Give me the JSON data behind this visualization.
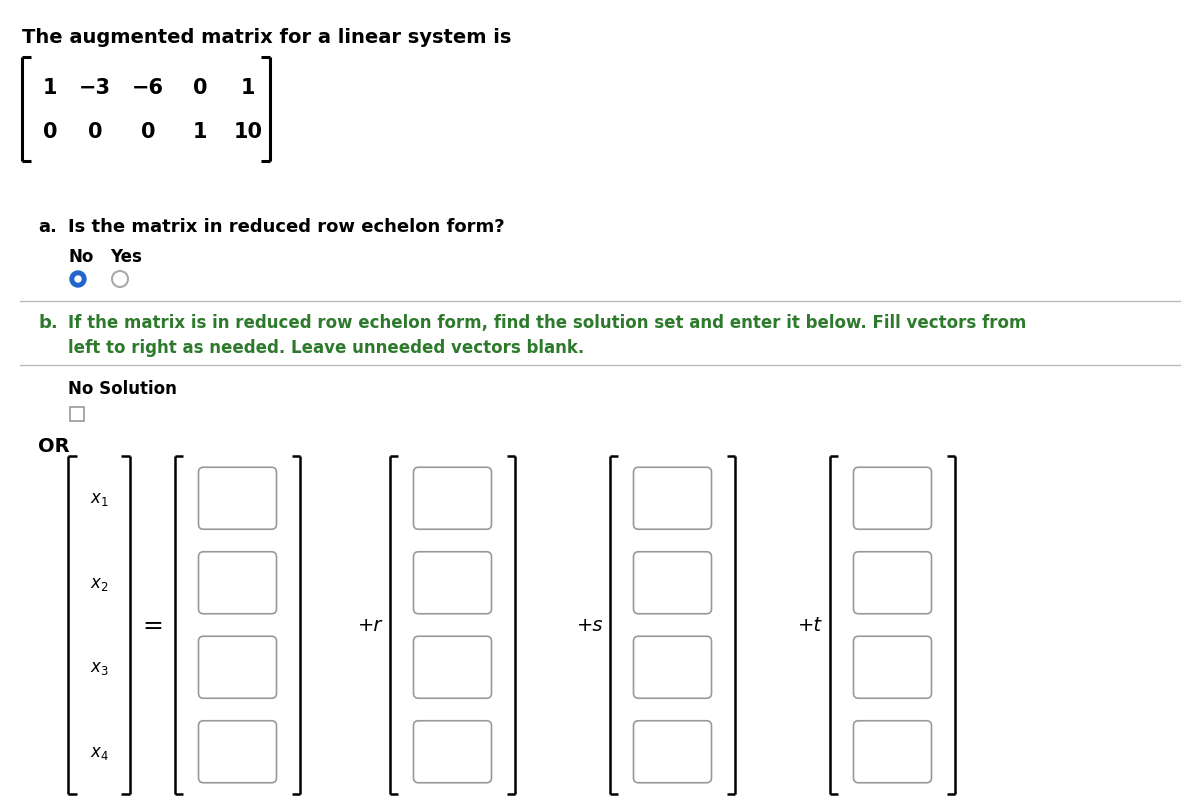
{
  "title": "The augmented matrix for a linear system is",
  "matrix_row1": [
    "1",
    "−3",
    "−6",
    "0",
    "1"
  ],
  "matrix_row2": [
    "0",
    "0",
    "0",
    "1",
    "10"
  ],
  "part_a_label": "a.",
  "part_a_question": "Is the matrix in reduced row echelon form?",
  "radio_labels": [
    "No",
    "Yes"
  ],
  "radio_selected": 0,
  "part_b_label": "b.",
  "part_b_text": "If the matrix is in reduced row echelon form, find the solution set and enter it below. Fill vectors from\nleft to right as needed. Leave unneeded vectors blank.",
  "no_solution_label": "No Solution",
  "or_label": "OR",
  "vector_lhs_labels": [
    "x_1",
    "x_2",
    "x_3",
    "x_4"
  ],
  "operators": [
    "+r",
    "+s",
    "+t"
  ],
  "bg_color": "#ffffff",
  "text_color": "#000000",
  "green_color": "#2d7a2d",
  "radio_fill": "#2266cc",
  "box_edge_color": "#999999",
  "separator_color": "#bbbbbb"
}
